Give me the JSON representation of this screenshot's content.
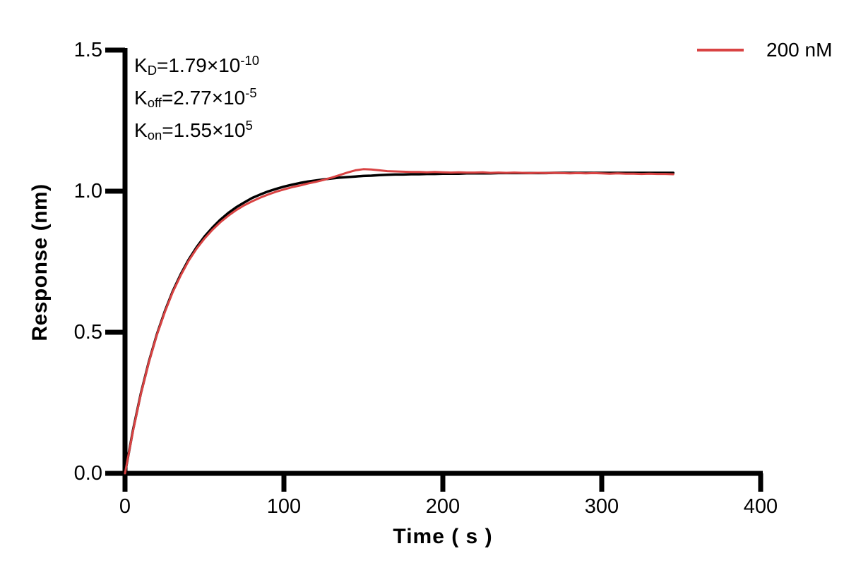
{
  "figure": {
    "legend": {
      "label": "200 nM",
      "color": "#d94343"
    },
    "annotations": [
      {
        "k": "K",
        "sub": "D",
        "eq": "=1.79×10",
        "sup": "-10"
      },
      {
        "k": "K",
        "sub": "off",
        "eq": "=2.77×10",
        "sup": "-5"
      },
      {
        "k": "K",
        "sub": "on",
        "eq": "=1.55×10",
        "sup": "5"
      }
    ],
    "axes": {
      "x": {
        "title": "Time ( s )",
        "ticks": [
          "0",
          "100",
          "200",
          "300",
          "400"
        ]
      },
      "y": {
        "title": "Response (nm)",
        "ticks": [
          "0.0",
          "0.5",
          "1.0",
          "1.5"
        ]
      }
    }
  },
  "chart_data": {
    "type": "line",
    "title": "",
    "xlabel": "Time ( s )",
    "ylabel": "Response (nm)",
    "xlim": [
      0,
      400
    ],
    "ylim": [
      0,
      1.5
    ],
    "x_ticks": [
      0,
      100,
      200,
      300,
      400
    ],
    "y_ticks": [
      0.0,
      0.5,
      1.0,
      1.5
    ],
    "grid": false,
    "legend_position": "top-right",
    "kinetics": {
      "KD": "1.79×10^-10",
      "Koff": "2.77×10^-5",
      "Kon": "1.55×10^5"
    },
    "x": [
      0,
      5,
      10,
      15,
      20,
      25,
      30,
      35,
      40,
      45,
      50,
      55,
      60,
      65,
      70,
      75,
      80,
      85,
      90,
      95,
      100,
      105,
      110,
      115,
      120,
      125,
      130,
      135,
      140,
      145,
      150,
      155,
      160,
      165,
      170,
      175,
      180,
      185,
      190,
      195,
      200,
      205,
      210,
      215,
      220,
      225,
      230,
      235,
      240,
      245,
      250,
      255,
      260,
      265,
      270,
      275,
      280,
      285,
      290,
      295,
      300,
      305,
      310,
      315,
      320,
      325,
      330,
      335,
      340,
      345
    ],
    "series": [
      {
        "name": "fit",
        "role": "fitted-model",
        "color": "#000000",
        "values": [
          0.0,
          0.153,
          0.284,
          0.396,
          0.492,
          0.574,
          0.645,
          0.705,
          0.757,
          0.801,
          0.839,
          0.871,
          0.899,
          0.923,
          0.943,
          0.96,
          0.976,
          0.988,
          0.999,
          1.008,
          1.016,
          1.023,
          1.029,
          1.034,
          1.038,
          1.042,
          1.045,
          1.048,
          1.05,
          1.052,
          1.054,
          1.055,
          1.057,
          1.058,
          1.059,
          1.059,
          1.06,
          1.06,
          1.061,
          1.061,
          1.062,
          1.062,
          1.062,
          1.063,
          1.063,
          1.063,
          1.063,
          1.064,
          1.064,
          1.064,
          1.064,
          1.064,
          1.064,
          1.064,
          1.065,
          1.065,
          1.065,
          1.065,
          1.065,
          1.065,
          1.065,
          1.065,
          1.065,
          1.065,
          1.065,
          1.065,
          1.065,
          1.065,
          1.065,
          1.065
        ]
      },
      {
        "name": "200 nM",
        "role": "measured",
        "color": "#d94343",
        "values": [
          0.0,
          0.15,
          0.282,
          0.394,
          0.49,
          0.571,
          0.642,
          0.701,
          0.753,
          0.796,
          0.832,
          0.863,
          0.89,
          0.913,
          0.933,
          0.95,
          0.964,
          0.977,
          0.988,
          0.998,
          1.006,
          1.014,
          1.02,
          1.027,
          1.033,
          1.04,
          1.048,
          1.057,
          1.066,
          1.074,
          1.078,
          1.077,
          1.074,
          1.071,
          1.07,
          1.069,
          1.068,
          1.068,
          1.067,
          1.068,
          1.067,
          1.066,
          1.067,
          1.066,
          1.066,
          1.067,
          1.065,
          1.066,
          1.065,
          1.066,
          1.065,
          1.064,
          1.065,
          1.064,
          1.065,
          1.064,
          1.063,
          1.064,
          1.063,
          1.064,
          1.063,
          1.062,
          1.063,
          1.062,
          1.062,
          1.061,
          1.062,
          1.061,
          1.061,
          1.06
        ]
      }
    ]
  }
}
